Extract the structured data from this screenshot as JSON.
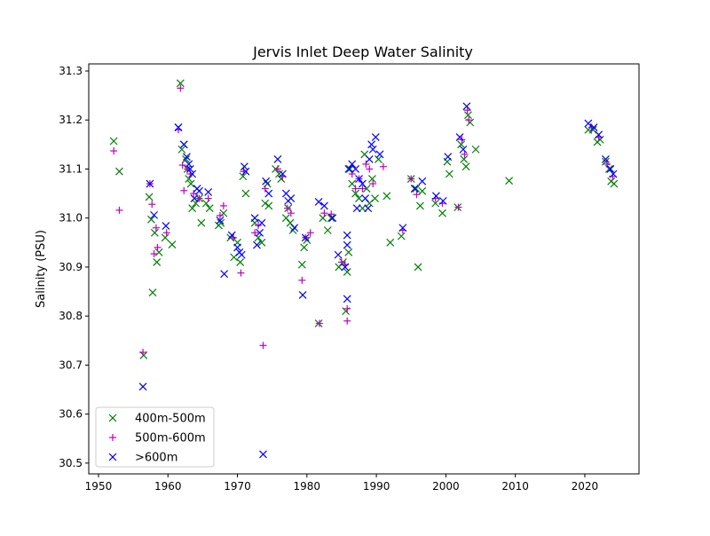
{
  "chart_data": {
    "type": "scatter",
    "title": "Jervis Inlet Deep Water Salinity",
    "xlabel": "",
    "ylabel": "Salinity (PSU)",
    "xlim": [
      1948.6,
      2027.8
    ],
    "ylim": [
      30.478,
      31.3145
    ],
    "xticks": [
      1950,
      1960,
      1970,
      1980,
      1990,
      2000,
      2010,
      2020
    ],
    "yticks": [
      30.5,
      30.6,
      30.7,
      30.8,
      30.9,
      31.0,
      31.1,
      31.2,
      31.3
    ],
    "ytick_labels": [
      "30.5",
      "30.6",
      "30.7",
      "30.8",
      "30.9",
      "31.0",
      "31.1",
      "31.2",
      "31.3"
    ],
    "grid": false,
    "legend_position": "lower-left",
    "series": [
      {
        "name": "400m-500m",
        "marker": "x",
        "color": "#008000",
        "points": [
          [
            1952.2,
            31.157
          ],
          [
            1953.0,
            31.095
          ],
          [
            1956.5,
            30.72
          ],
          [
            1957.3,
            31.043
          ],
          [
            1957.6,
            30.997
          ],
          [
            1957.8,
            30.848
          ],
          [
            1958.1,
            30.97
          ],
          [
            1958.4,
            30.91
          ],
          [
            1958.7,
            30.93
          ],
          [
            1959.6,
            30.96
          ],
          [
            1960.6,
            30.946
          ],
          [
            1961.8,
            31.275
          ],
          [
            1961.5,
            31.185
          ],
          [
            1962.0,
            31.14
          ],
          [
            1962.3,
            31.15
          ],
          [
            1962.6,
            31.12
          ],
          [
            1962.8,
            31.1
          ],
          [
            1963.0,
            31.08
          ],
          [
            1963.3,
            31.07
          ],
          [
            1963.5,
            31.02
          ],
          [
            1964.0,
            31.03
          ],
          [
            1964.5,
            31.04
          ],
          [
            1964.8,
            30.99
          ],
          [
            1965.5,
            31.03
          ],
          [
            1966.0,
            31.02
          ],
          [
            1967.3,
            30.985
          ],
          [
            1967.6,
            30.99
          ],
          [
            1968.0,
            31.01
          ],
          [
            1969.0,
            30.96
          ],
          [
            1969.5,
            30.92
          ],
          [
            1970.0,
            30.95
          ],
          [
            1970.4,
            30.91
          ],
          [
            1970.8,
            31.085
          ],
          [
            1971.2,
            31.05
          ],
          [
            1972.5,
            30.99
          ],
          [
            1973.0,
            30.96
          ],
          [
            1973.5,
            30.95
          ],
          [
            1974.0,
            31.03
          ],
          [
            1974.3,
            31.07
          ],
          [
            1974.5,
            31.025
          ],
          [
            1975.5,
            31.1
          ],
          [
            1976.0,
            31.09
          ],
          [
            1976.3,
            31.08
          ],
          [
            1977.0,
            31.0
          ],
          [
            1977.3,
            31.02
          ],
          [
            1977.6,
            30.99
          ],
          [
            1978.0,
            30.975
          ],
          [
            1979.3,
            30.905
          ],
          [
            1979.6,
            30.94
          ],
          [
            1980.0,
            30.955
          ],
          [
            1981.7,
            30.785
          ],
          [
            1982.3,
            31.0
          ],
          [
            1983.0,
            30.975
          ],
          [
            1983.5,
            31.0
          ],
          [
            1984.6,
            30.9
          ],
          [
            1985.2,
            30.91
          ],
          [
            1985.6,
            30.81
          ],
          [
            1985.8,
            30.89
          ],
          [
            1986.0,
            30.93
          ],
          [
            1986.2,
            31.1
          ],
          [
            1986.5,
            31.07
          ],
          [
            1987.0,
            31.05
          ],
          [
            1987.5,
            31.04
          ],
          [
            1988.0,
            31.02
          ],
          [
            1988.3,
            31.13
          ],
          [
            1988.6,
            31.06
          ],
          [
            1989.0,
            31.03
          ],
          [
            1989.4,
            31.08
          ],
          [
            1989.8,
            31.04
          ],
          [
            1990.3,
            31.12
          ],
          [
            1991.5,
            31.045
          ],
          [
            1992.0,
            30.95
          ],
          [
            1993.6,
            30.963
          ],
          [
            1995.0,
            31.08
          ],
          [
            1995.7,
            31.06
          ],
          [
            1996.0,
            30.9
          ],
          [
            1996.3,
            31.025
          ],
          [
            1996.6,
            31.055
          ],
          [
            1998.5,
            31.03
          ],
          [
            1999.5,
            31.01
          ],
          [
            2000.2,
            31.115
          ],
          [
            2000.5,
            31.09
          ],
          [
            2001.7,
            31.022
          ],
          [
            2002.2,
            31.15
          ],
          [
            2002.6,
            31.12
          ],
          [
            2002.9,
            31.105
          ],
          [
            2003.2,
            31.21
          ],
          [
            2003.5,
            31.195
          ],
          [
            2004.3,
            31.14
          ],
          [
            2009.1,
            31.076
          ],
          [
            2020.5,
            31.18
          ],
          [
            2021.2,
            31.18
          ],
          [
            2021.8,
            31.155
          ],
          [
            2022.2,
            31.16
          ],
          [
            2023.0,
            31.115
          ],
          [
            2023.5,
            31.1
          ],
          [
            2023.8,
            31.075
          ],
          [
            2024.2,
            31.07
          ]
        ]
      },
      {
        "name": "500m-600m",
        "marker": "+",
        "color": "#bf00bf",
        "points": [
          [
            1952.2,
            31.137
          ],
          [
            1953.0,
            31.016
          ],
          [
            1956.4,
            30.726
          ],
          [
            1957.4,
            31.07
          ],
          [
            1957.7,
            31.028
          ],
          [
            1958.0,
            30.927
          ],
          [
            1958.3,
            30.98
          ],
          [
            1958.5,
            30.94
          ],
          [
            1959.8,
            30.97
          ],
          [
            1961.8,
            31.265
          ],
          [
            1961.5,
            31.18
          ],
          [
            1962.1,
            31.108
          ],
          [
            1962.3,
            31.056
          ],
          [
            1962.8,
            31.1
          ],
          [
            1963.2,
            31.09
          ],
          [
            1963.7,
            31.05
          ],
          [
            1964.5,
            31.04
          ],
          [
            1965.8,
            31.04
          ],
          [
            1967.5,
            31.005
          ],
          [
            1968.0,
            31.025
          ],
          [
            1969.4,
            30.96
          ],
          [
            1970.5,
            30.888
          ],
          [
            1970.9,
            31.095
          ],
          [
            1972.5,
            30.97
          ],
          [
            1973.0,
            30.985
          ],
          [
            1973.7,
            30.74
          ],
          [
            1974.0,
            31.06
          ],
          [
            1975.8,
            31.1
          ],
          [
            1976.5,
            31.085
          ],
          [
            1977.2,
            31.02
          ],
          [
            1977.7,
            31.01
          ],
          [
            1979.3,
            30.873
          ],
          [
            1979.8,
            30.96
          ],
          [
            1980.5,
            30.97
          ],
          [
            1981.8,
            30.785
          ],
          [
            1982.5,
            31.01
          ],
          [
            1983.5,
            31.008
          ],
          [
            1985.0,
            30.91
          ],
          [
            1985.5,
            30.905
          ],
          [
            1985.8,
            30.815
          ],
          [
            1985.8,
            30.79
          ],
          [
            1986.5,
            31.09
          ],
          [
            1987.0,
            31.06
          ],
          [
            1987.5,
            31.08
          ],
          [
            1988.0,
            31.06
          ],
          [
            1988.5,
            31.11
          ],
          [
            1989.0,
            31.1
          ],
          [
            1989.5,
            31.07
          ],
          [
            1991.0,
            31.105
          ],
          [
            1993.8,
            30.975
          ],
          [
            1995.0,
            31.08
          ],
          [
            1995.8,
            31.048
          ],
          [
            1998.5,
            31.04
          ],
          [
            1999.5,
            31.03
          ],
          [
            2001.8,
            31.022
          ],
          [
            2002.3,
            31.16
          ],
          [
            2002.7,
            31.13
          ],
          [
            2003.1,
            31.22
          ],
          [
            2003.3,
            31.2
          ],
          [
            2021.0,
            31.185
          ],
          [
            2022.0,
            31.165
          ],
          [
            2023.2,
            31.11
          ],
          [
            2024.0,
            31.085
          ]
        ]
      },
      {
        "name": ">600m",
        "marker": "x",
        "color": "#0000ff",
        "points": [
          [
            1956.4,
            30.656
          ],
          [
            1957.4,
            31.07
          ],
          [
            1958.0,
            31.006
          ],
          [
            1959.7,
            30.984
          ],
          [
            1961.5,
            31.185
          ],
          [
            1962.3,
            31.15
          ],
          [
            1962.7,
            31.125
          ],
          [
            1963.0,
            31.11
          ],
          [
            1963.2,
            31.1
          ],
          [
            1963.5,
            31.09
          ],
          [
            1963.8,
            31.04
          ],
          [
            1964.2,
            31.06
          ],
          [
            1964.5,
            31.055
          ],
          [
            1965.8,
            31.053
          ],
          [
            1967.5,
            30.995
          ],
          [
            1968.1,
            30.886
          ],
          [
            1969.2,
            30.965
          ],
          [
            1970.0,
            30.94
          ],
          [
            1970.3,
            30.93
          ],
          [
            1970.6,
            30.925
          ],
          [
            1971.0,
            31.105
          ],
          [
            1971.2,
            31.095
          ],
          [
            1972.5,
            31.0
          ],
          [
            1972.8,
            30.945
          ],
          [
            1973.2,
            30.97
          ],
          [
            1973.5,
            30.99
          ],
          [
            1973.7,
            30.518
          ],
          [
            1974.1,
            31.075
          ],
          [
            1974.5,
            31.05
          ],
          [
            1975.8,
            31.12
          ],
          [
            1976.5,
            31.09
          ],
          [
            1977.0,
            31.05
          ],
          [
            1977.3,
            31.035
          ],
          [
            1977.7,
            31.04
          ],
          [
            1978.2,
            30.98
          ],
          [
            1979.4,
            30.843
          ],
          [
            1979.8,
            30.96
          ],
          [
            1981.7,
            31.033
          ],
          [
            1982.5,
            31.025
          ],
          [
            1983.7,
            31.0
          ],
          [
            1984.5,
            30.925
          ],
          [
            1985.5,
            30.9
          ],
          [
            1985.8,
            30.965
          ],
          [
            1985.8,
            30.945
          ],
          [
            1985.8,
            30.835
          ],
          [
            1986.0,
            31.1
          ],
          [
            1986.5,
            31.11
          ],
          [
            1987.0,
            31.1
          ],
          [
            1987.2,
            31.02
          ],
          [
            1987.5,
            31.08
          ],
          [
            1988.0,
            31.07
          ],
          [
            1988.4,
            31.04
          ],
          [
            1988.8,
            31.02
          ],
          [
            1989.0,
            31.12
          ],
          [
            1989.3,
            31.15
          ],
          [
            1989.5,
            31.14
          ],
          [
            1989.9,
            31.165
          ],
          [
            1990.5,
            31.13
          ],
          [
            1993.8,
            30.98
          ],
          [
            1995.5,
            31.06
          ],
          [
            1996.6,
            31.075
          ],
          [
            1998.6,
            31.045
          ],
          [
            1999.6,
            31.035
          ],
          [
            2000.3,
            31.125
          ],
          [
            2002.0,
            31.165
          ],
          [
            2002.5,
            31.14
          ],
          [
            2003.0,
            31.228
          ],
          [
            2020.5,
            31.193
          ],
          [
            2021.3,
            31.185
          ],
          [
            2022.0,
            31.17
          ],
          [
            2023.0,
            31.12
          ],
          [
            2023.7,
            31.1
          ],
          [
            2024.1,
            31.09
          ]
        ]
      }
    ]
  }
}
